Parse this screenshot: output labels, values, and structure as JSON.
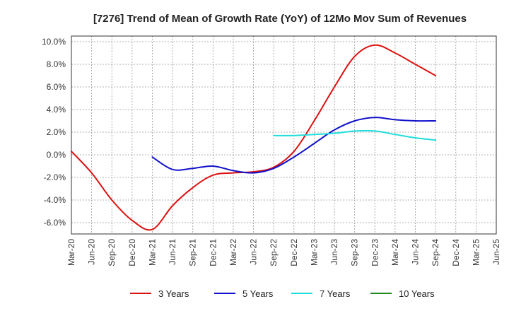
{
  "chart_data": {
    "type": "line",
    "title": "[7276]  Trend of Mean of Growth Rate (YoY) of 12Mo Mov Sum of Revenues",
    "xlabel": "",
    "ylabel": "",
    "ylim": [
      -7.0,
      10.5
    ],
    "yticks": [
      "10.0%",
      "8.0%",
      "6.0%",
      "4.0%",
      "2.0%",
      "0.0%",
      "-2.0%",
      "-4.0%",
      "-6.0%"
    ],
    "ytick_values": [
      10,
      8,
      6,
      4,
      2,
      0,
      -2,
      -4,
      -6
    ],
    "categories": [
      "Mar-20",
      "Jun-20",
      "Sep-20",
      "Dec-20",
      "Mar-21",
      "Jun-21",
      "Sep-21",
      "Dec-21",
      "Mar-22",
      "Jun-22",
      "Sep-22",
      "Dec-22",
      "Mar-23",
      "Jun-23",
      "Sep-23",
      "Dec-23",
      "Mar-24",
      "Jun-24",
      "Sep-24",
      "Dec-24",
      "Mar-25",
      "Jun-25"
    ],
    "grid": true,
    "legend": "bottom",
    "series": [
      {
        "name": "3 Years",
        "color": "#dd1111",
        "values": [
          0.3,
          -1.6,
          -4.0,
          -5.8,
          -6.6,
          -4.5,
          -2.9,
          -1.8,
          -1.6,
          -1.5,
          -1.1,
          0.3,
          3.0,
          6.0,
          8.7,
          9.7,
          9.0,
          8.0,
          7.0,
          null,
          null,
          null
        ]
      },
      {
        "name": "5 Years",
        "color": "#1111cc",
        "values": [
          null,
          null,
          null,
          null,
          -0.2,
          -1.3,
          -1.2,
          -1.0,
          -1.4,
          -1.6,
          -1.2,
          -0.2,
          1.0,
          2.2,
          3.0,
          3.3,
          3.1,
          3.0,
          3.0,
          null,
          null,
          null
        ]
      },
      {
        "name": "7 Years",
        "color": "#22dddd",
        "values": [
          null,
          null,
          null,
          null,
          null,
          null,
          null,
          null,
          null,
          null,
          1.7,
          1.7,
          1.8,
          1.9,
          2.1,
          2.1,
          1.8,
          1.5,
          1.3,
          null,
          null,
          null
        ]
      },
      {
        "name": "10 Years",
        "color": "#228822",
        "values": [
          null,
          null,
          null,
          null,
          null,
          null,
          null,
          null,
          null,
          null,
          null,
          null,
          null,
          null,
          null,
          null,
          null,
          null,
          null,
          null,
          null,
          null
        ]
      }
    ]
  }
}
